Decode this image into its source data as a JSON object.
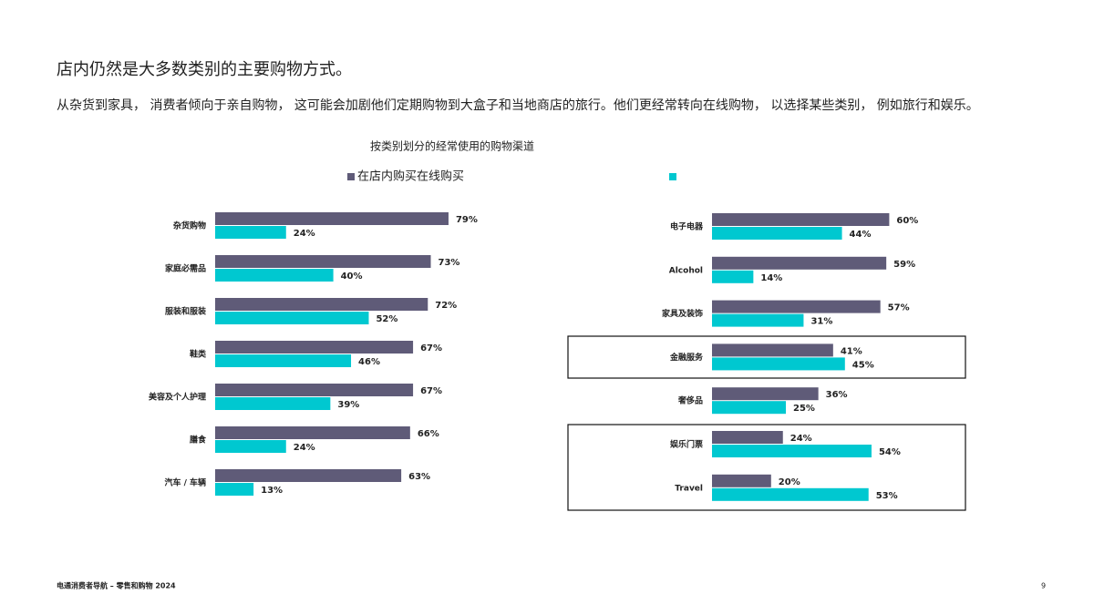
{
  "title": "店内仍然是大多数类别的主要购物方式。",
  "subtitle": "从杂货到家具， 消费者倾向于亲自购物， 这可能会加剧他们定期购物到大盒子和当地商店的旅行。他们更经常转向在线购物， 以选择某些类别， 例如旅行和娱乐。",
  "chart_title": "按类别划分的经常使用的购物渠道",
  "footer": "电通消费者导航 – 零售和购物 2024",
  "page_number": "9",
  "chart_data": [
    {
      "type": "bar",
      "orientation": "horizontal",
      "categories": [
        "杂货购物",
        "家庭必需品",
        "服装和服装",
        "鞋类",
        "美容及个人护理",
        "膳食",
        "汽车 / 车辆"
      ],
      "series": [
        {
          "name": "在店内购买",
          "color": "#5f5b78",
          "values": [
            79,
            73,
            72,
            67,
            67,
            66,
            63
          ],
          "value_labels": [
            "79%",
            "73%",
            "72%",
            "67%",
            "67%",
            "66%",
            "63%"
          ]
        },
        {
          "name": "在线购买",
          "color": "#00c8d0",
          "values": [
            24,
            40,
            52,
            46,
            39,
            24,
            13
          ],
          "value_labels": [
            "24%",
            "40%",
            "52%",
            "46%",
            "39%",
            "24%",
            "13%"
          ]
        }
      ]
    },
    {
      "type": "bar",
      "orientation": "horizontal",
      "categories": [
        "电子电器",
        "Alcohol",
        "家具及装饰",
        "金融服务",
        "奢侈品",
        "娱乐门票",
        "Travel"
      ],
      "series": [
        {
          "color": "#5f5b78",
          "values": [
            60,
            59,
            57,
            41,
            36,
            24,
            20
          ],
          "value_labels": [
            "60%",
            "59%",
            "57%",
            "41%",
            "36%",
            "24%",
            "20%"
          ]
        },
        {
          "color": "#00c8d0",
          "values": [
            44,
            14,
            31,
            45,
            25,
            54,
            53
          ],
          "value_labels": [
            "44%",
            "14%",
            "31%",
            "45%",
            "25%",
            "54%",
            "53%"
          ]
        }
      ]
    }
  ]
}
